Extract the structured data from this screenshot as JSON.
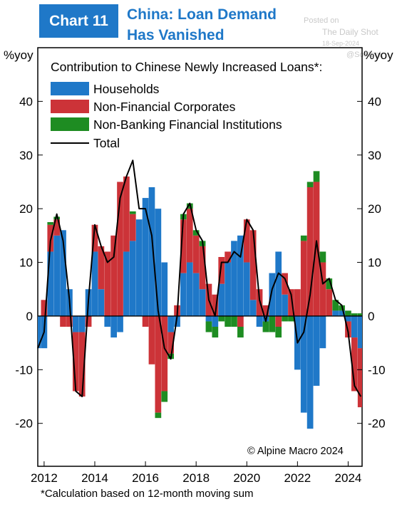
{
  "header": {
    "badge": "Chart 11",
    "title_line1": "China: Loan Demand",
    "title_line2": "Has Vanished"
  },
  "watermark": {
    "line1": "Posted on",
    "line2": "The Daily Shot",
    "line3": "18-Sep-2024",
    "line4": "@SoMook"
  },
  "axis_unit_left": "%yoy",
  "axis_unit_right": "%yoy",
  "source": "© Alpine Macro 2024",
  "footnote": "*Calculation based on 12-month moving sum",
  "colors": {
    "households": "#1f78c8",
    "nonfinancial": "#cc3338",
    "nonbanking": "#1e8c22",
    "total": "#000000"
  },
  "chart_data": {
    "type": "bar",
    "stacked": true,
    "title": "Contribution to Chinese Newly Increased Loans*:",
    "xlim": [
      2011.75,
      2024.55
    ],
    "ylim": [
      -28,
      50
    ],
    "xticks": [
      2012,
      2014,
      2016,
      2018,
      2020,
      2022,
      2024
    ],
    "yticks": [
      -20,
      -10,
      0,
      10,
      20,
      30,
      40
    ],
    "legend_position": "top-left",
    "grid": false,
    "annotation": "© Alpine Macro 2024",
    "x": [
      2011.75,
      2012.0,
      2012.25,
      2012.5,
      2012.75,
      2013.0,
      2013.25,
      2013.5,
      2013.75,
      2014.0,
      2014.25,
      2014.5,
      2014.75,
      2015.0,
      2015.25,
      2015.5,
      2015.75,
      2016.0,
      2016.25,
      2016.5,
      2016.75,
      2017.0,
      2017.25,
      2017.5,
      2017.75,
      2018.0,
      2018.25,
      2018.5,
      2018.75,
      2019.0,
      2019.25,
      2019.5,
      2019.75,
      2020.0,
      2020.25,
      2020.5,
      2020.75,
      2021.0,
      2021.25,
      2021.5,
      2021.75,
      2022.0,
      2022.25,
      2022.5,
      2022.75,
      2023.0,
      2023.25,
      2023.5,
      2023.75,
      2024.0,
      2024.25,
      2024.5
    ],
    "series": [
      {
        "name": "Households",
        "values": [
          -6,
          -6,
          12,
          15,
          16,
          5,
          -3,
          -3,
          5,
          12,
          5,
          -2,
          -4,
          -3,
          12,
          14,
          18,
          22,
          24,
          20,
          10,
          -3,
          -2,
          8,
          10,
          8,
          5,
          -1,
          -2,
          6,
          10,
          14,
          15,
          10,
          3,
          -2,
          -1,
          8,
          12,
          4,
          0,
          -10,
          -18,
          -21,
          -13,
          -6,
          0,
          1,
          1,
          -1,
          -4,
          -6
        ]
      },
      {
        "name": "Non-Financial Corporates",
        "values": [
          0,
          3,
          5,
          3,
          -2,
          -2,
          -11,
          -12,
          -2,
          5,
          8,
          12,
          15,
          25,
          14,
          5,
          0,
          -2,
          -9,
          -18,
          -14,
          -4,
          2,
          10,
          10,
          7,
          8,
          6,
          4,
          5,
          2,
          0,
          -2,
          8,
          13,
          5,
          2,
          0,
          -2,
          4,
          5,
          5,
          14,
          24,
          25,
          10,
          5,
          0,
          0,
          -3,
          -10,
          -11
        ]
      },
      {
        "name": "Non-Banking Financial Institutions",
        "values": [
          0,
          0,
          0.5,
          0.5,
          0,
          0,
          0,
          0,
          0,
          0,
          0,
          0,
          0,
          0,
          0,
          0.5,
          0,
          0,
          0,
          -1,
          -2,
          -1,
          0,
          1,
          1,
          1,
          1,
          -2,
          -2,
          -1,
          -2,
          -2,
          -2,
          0,
          0,
          0,
          -2,
          -3,
          -2,
          -1,
          -1,
          0,
          1,
          1,
          2,
          2,
          2,
          2,
          1,
          1,
          0.5,
          0.5
        ]
      },
      {
        "name": "Total",
        "type": "line",
        "values": [
          -6,
          -3,
          14,
          19,
          14,
          3,
          -14,
          -15,
          3,
          17,
          13,
          10,
          11,
          22,
          26,
          29,
          20,
          20,
          15,
          1,
          -6,
          -8,
          0,
          19,
          21,
          16,
          14,
          3,
          0,
          10,
          10,
          12,
          11,
          18,
          16,
          3,
          -1,
          5,
          8,
          7,
          4,
          -5,
          -3,
          4,
          14,
          6,
          7,
          3,
          2,
          -3,
          -13,
          -15
        ]
      }
    ]
  }
}
